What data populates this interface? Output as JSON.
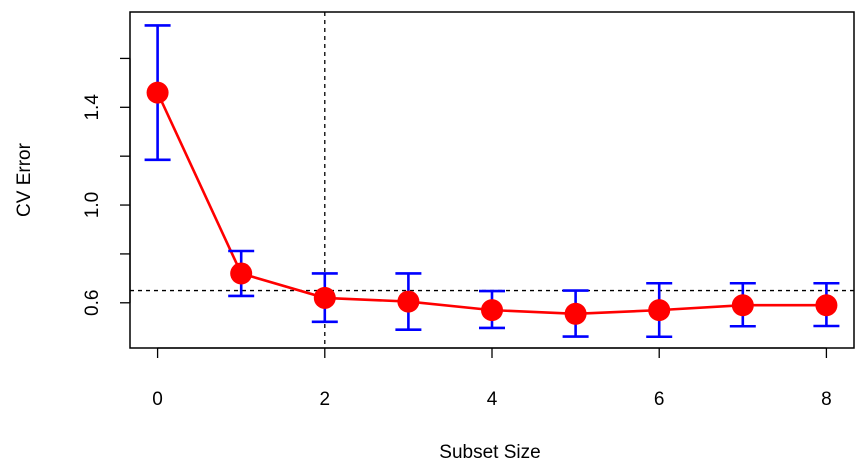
{
  "chart_data": {
    "type": "line",
    "title": "",
    "xlabel": "Subset Size",
    "ylabel": "CV Error",
    "x": [
      0,
      1,
      2,
      3,
      4,
      5,
      6,
      7,
      8
    ],
    "series": [
      {
        "values": [
          1.46,
          0.72,
          0.62,
          0.605,
          0.57,
          0.555,
          0.57,
          0.59,
          0.59
        ],
        "error_low": [
          1.185,
          0.628,
          0.522,
          0.49,
          0.497,
          0.462,
          0.461,
          0.504,
          0.505
        ],
        "error_high": [
          1.735,
          0.812,
          0.72,
          0.72,
          0.648,
          0.65,
          0.68,
          0.68,
          0.68
        ],
        "line_color": "#ff0000",
        "point_color": "#ff0000",
        "error_bar_color": "#0000ff"
      }
    ],
    "reference_lines": {
      "vertical_x": 2,
      "horizontal_y": 0.65,
      "style": "dashed"
    },
    "xlim": [
      -0.33,
      8.33
    ],
    "ylim": [
      0.415,
      1.79
    ],
    "x_ticks": [
      0,
      2,
      4,
      6,
      8
    ],
    "y_ticks": [
      0.6,
      0.8,
      1.0,
      1.2,
      1.4,
      1.6
    ],
    "y_tick_labels": [
      {
        "value": 0.6,
        "label": "0.6"
      },
      {
        "value": 1.0,
        "label": "1.0"
      },
      {
        "value": 1.4,
        "label": "1.4"
      }
    ],
    "grid": false,
    "legend": "none"
  }
}
